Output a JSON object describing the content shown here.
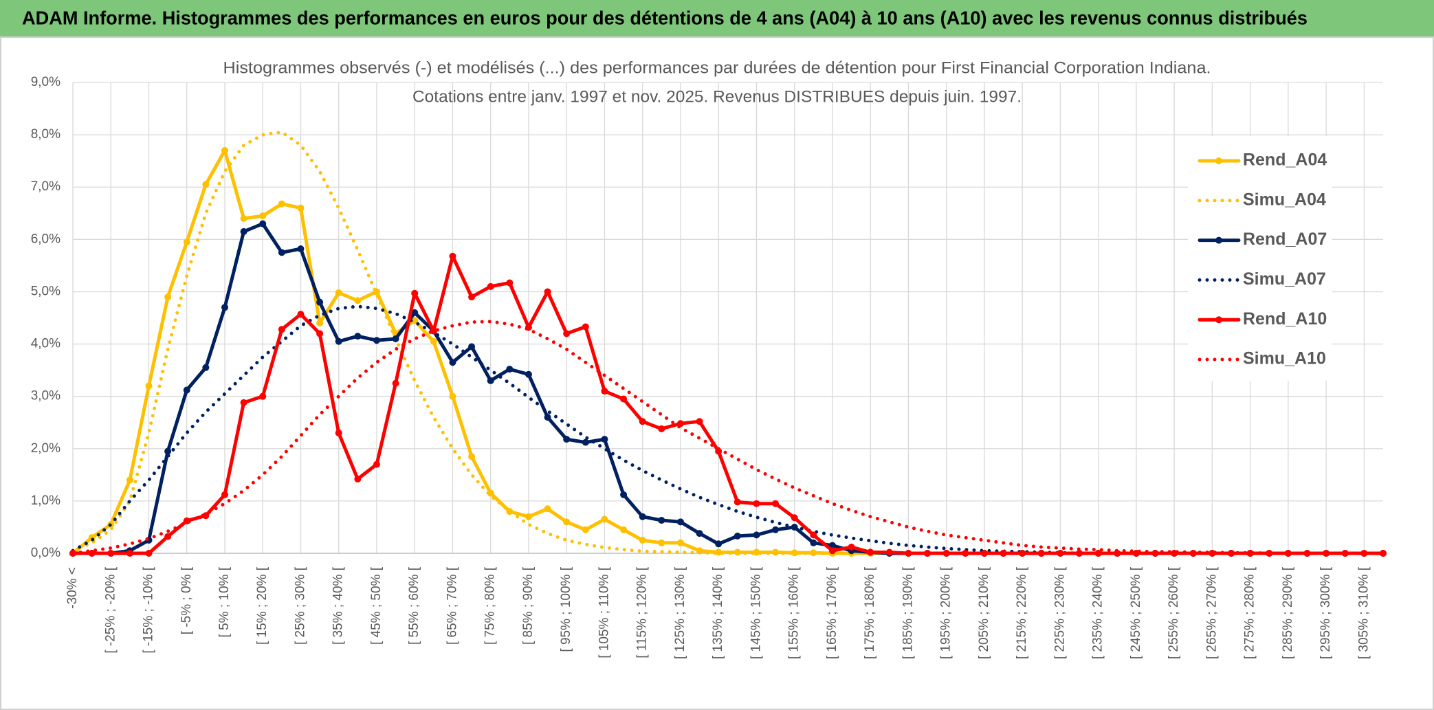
{
  "header": {
    "title": "ADAM Informe. Histogrammes des performances en euros pour des détentions de 4 ans (A04) à 10 ans (A10) avec les revenus connus distribués"
  },
  "chart_data": {
    "type": "line",
    "title": [
      "Histogrammes observés (-) et modélisés (...) des performances par durées de détention pour First Financial Corporation Indiana.",
      "Cotations entre janv. 1997 et nov. 2025. Revenus DISTRIBUES depuis juin. 1997."
    ],
    "categories": [
      "-30% <",
      null,
      "[ -25% ; -20% [",
      null,
      "[ -15% ; -10% [",
      null,
      "[ -5% ; 0% [",
      null,
      "[ 5% ; 10% [",
      null,
      "[ 15% ; 20% [",
      null,
      "[ 25% ; 30% [",
      null,
      "[ 35% ; 40% [",
      null,
      "[ 45% ; 50% [",
      null,
      "[ 55% ; 60% [",
      null,
      "[ 65% ; 70% [",
      null,
      "[ 75% ; 80% [",
      null,
      "[ 85% ; 90% [",
      null,
      "[ 95% ; 100% [",
      null,
      "[ 105% ; 110% [",
      null,
      "[ 115% ; 120% [",
      null,
      "[ 125% ; 130% [",
      null,
      "[ 135% ; 140% [",
      null,
      "[ 145% ; 150% [",
      null,
      "[ 155% ; 160% [",
      null,
      "[ 165% ; 170% [",
      null,
      "[ 175% ; 180% [",
      null,
      "[ 185% ; 190% [",
      null,
      "[ 195% ; 200% [",
      null,
      "[ 205% ; 210% [",
      null,
      "[ 215% ; 220% [",
      null,
      "[ 225% ; 230% [",
      null,
      "[ 235% ; 240% [",
      null,
      "[ 245% ; 250% [",
      null,
      "[ 255% ; 260% [",
      null,
      "[ 265% ; 270% [",
      null,
      "[ 275% ; 280% [",
      null,
      "[ 285% ; 290% [",
      null,
      "[ 295% ; 300% [",
      null,
      "[ 305% ; 310% [",
      null
    ],
    "series": [
      {
        "name": "Rend_A04",
        "color": "#FFC000",
        "dashed": false,
        "markers": true,
        "values": [
          0,
          0.3,
          0.55,
          1.4,
          3.2,
          4.9,
          5.95,
          7.05,
          7.7,
          6.4,
          6.45,
          6.68,
          6.6,
          4.4,
          4.98,
          4.83,
          5.0,
          4.2,
          4.45,
          4.05,
          3.0,
          1.85,
          1.15,
          0.8,
          0.7,
          0.85,
          0.6,
          0.45,
          0.65,
          0.45,
          0.25,
          0.2,
          0.2,
          0.05,
          0.02,
          0.02,
          0.02,
          0.02,
          0.01,
          0.01,
          0,
          0,
          0,
          0,
          0,
          0,
          0,
          0,
          0,
          0,
          0,
          0,
          0,
          0,
          0,
          0,
          0,
          0,
          0,
          0,
          0,
          0,
          0,
          0,
          0,
          0,
          0,
          0,
          0,
          0
        ]
      },
      {
        "name": "Simu_A04",
        "color": "#FFC000",
        "dashed": true,
        "markers": false,
        "values": [
          0.05,
          0.2,
          0.45,
          1.0,
          2.3,
          3.9,
          5.3,
          6.5,
          7.3,
          7.8,
          8.0,
          8.05,
          7.8,
          7.3,
          6.6,
          5.8,
          4.95,
          4.1,
          3.3,
          2.6,
          2.0,
          1.5,
          1.1,
          0.8,
          0.55,
          0.38,
          0.25,
          0.17,
          0.11,
          0.07,
          0.04,
          0.03,
          0.02,
          0.01,
          0,
          0,
          0,
          0,
          0,
          0,
          0,
          0,
          0,
          0,
          0,
          0,
          0,
          0,
          0,
          0,
          0,
          0,
          0,
          0,
          0,
          0,
          0,
          0,
          0,
          0,
          0,
          0,
          0,
          0,
          0,
          0,
          0,
          0,
          0,
          0
        ]
      },
      {
        "name": "Rend_A07",
        "color": "#002060",
        "dashed": false,
        "markers": true,
        "values": [
          0,
          0,
          0,
          0.05,
          0.25,
          1.95,
          3.12,
          3.55,
          4.7,
          6.15,
          6.3,
          5.75,
          5.82,
          4.8,
          4.05,
          4.15,
          4.07,
          4.1,
          4.6,
          4.25,
          3.65,
          3.95,
          3.3,
          3.52,
          3.42,
          2.6,
          2.18,
          2.12,
          2.18,
          1.12,
          0.7,
          0.63,
          0.6,
          0.38,
          0.18,
          0.33,
          0.35,
          0.45,
          0.5,
          0.2,
          0.15,
          0.05,
          0.02,
          0,
          0,
          0,
          0,
          0,
          0,
          0,
          0,
          0,
          0,
          0,
          0,
          0,
          0,
          0,
          0,
          0,
          0,
          0,
          0,
          0,
          0,
          0,
          0,
          0,
          0,
          0
        ]
      },
      {
        "name": "Simu_A07",
        "color": "#002060",
        "dashed": true,
        "markers": false,
        "values": [
          0.05,
          0.25,
          0.55,
          1.0,
          1.4,
          1.85,
          2.3,
          2.7,
          3.05,
          3.4,
          3.75,
          4.05,
          4.35,
          4.55,
          4.68,
          4.72,
          4.68,
          4.58,
          4.42,
          4.22,
          4.0,
          3.75,
          3.5,
          3.25,
          2.98,
          2.72,
          2.47,
          2.22,
          2.0,
          1.78,
          1.58,
          1.4,
          1.23,
          1.07,
          0.93,
          0.8,
          0.69,
          0.59,
          0.5,
          0.42,
          0.35,
          0.29,
          0.24,
          0.19,
          0.15,
          0.12,
          0.09,
          0.07,
          0.05,
          0.04,
          0.03,
          0.02,
          0.01,
          0,
          0,
          0,
          0,
          0,
          0,
          0,
          0,
          0,
          0,
          0,
          0,
          0,
          0,
          0,
          0,
          0
        ]
      },
      {
        "name": "Rend_A10",
        "color": "#FF0000",
        "dashed": false,
        "markers": true,
        "values": [
          0,
          0,
          0,
          0,
          0,
          0.32,
          0.62,
          0.72,
          1.12,
          2.88,
          3.0,
          4.28,
          4.57,
          4.2,
          2.3,
          1.42,
          1.7,
          3.25,
          4.97,
          4.25,
          5.68,
          4.9,
          5.1,
          5.17,
          4.32,
          5.0,
          4.2,
          4.33,
          3.1,
          2.95,
          2.52,
          2.38,
          2.48,
          2.52,
          1.95,
          0.98,
          0.95,
          0.95,
          0.68,
          0.35,
          0.05,
          0.12,
          0.02,
          0.02,
          0,
          0,
          0,
          0,
          0,
          0,
          0,
          0,
          0,
          0,
          0,
          0,
          0,
          0,
          0,
          0,
          0,
          0,
          0,
          0,
          0,
          0,
          0,
          0,
          0,
          0
        ]
      },
      {
        "name": "Simu_A10",
        "color": "#FF0000",
        "dashed": true,
        "markers": false,
        "values": [
          0,
          0.05,
          0.1,
          0.18,
          0.28,
          0.42,
          0.58,
          0.75,
          0.95,
          1.2,
          1.5,
          1.85,
          2.25,
          2.65,
          3.0,
          3.35,
          3.65,
          3.9,
          4.1,
          4.25,
          4.35,
          4.42,
          4.43,
          4.38,
          4.28,
          4.1,
          3.9,
          3.65,
          3.4,
          3.15,
          2.9,
          2.65,
          2.4,
          2.2,
          2.0,
          1.8,
          1.6,
          1.42,
          1.25,
          1.1,
          0.95,
          0.82,
          0.7,
          0.6,
          0.5,
          0.42,
          0.35,
          0.3,
          0.25,
          0.2,
          0.15,
          0.12,
          0.1,
          0.08,
          0.07,
          0.05,
          0.04,
          0.03,
          0.03,
          0.02,
          0.02,
          0.01,
          0.01,
          0,
          0,
          0,
          0,
          0,
          0,
          0
        ]
      }
    ],
    "ylim": [
      0,
      9
    ],
    "yticks": [
      {
        "value": 0,
        "label": "0,0%"
      },
      {
        "value": 1,
        "label": "1,0%"
      },
      {
        "value": 2,
        "label": "2,0%"
      },
      {
        "value": 3,
        "label": "3,0%"
      },
      {
        "value": 4,
        "label": "4,0%"
      },
      {
        "value": 5,
        "label": "5,0%"
      },
      {
        "value": 6,
        "label": "6,0%"
      },
      {
        "value": 7,
        "label": "7,0%"
      },
      {
        "value": 8,
        "label": "8,0%"
      },
      {
        "value": 9,
        "label": "9,0%"
      }
    ],
    "grid": true,
    "legend": "right"
  }
}
